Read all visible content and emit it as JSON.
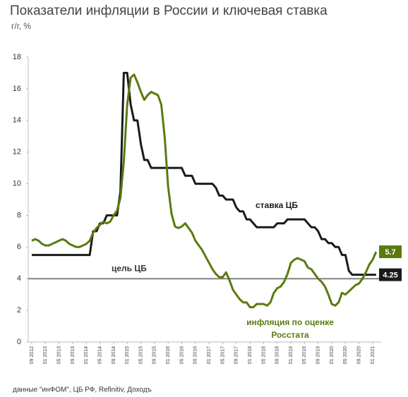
{
  "chart_data": {
    "type": "line",
    "title": "Показатели инфляции в России и ключевая ставка",
    "subtitle": "г/г, %",
    "source": "данные \"инФОМ\", ЦБ РФ, Refinitiv, Доходъ",
    "categories": [
      "09 2012",
      null,
      null,
      null,
      "01 2013",
      null,
      null,
      null,
      "05 2013",
      null,
      null,
      null,
      "09 2013",
      null,
      null,
      null,
      "01 2014",
      null,
      null,
      null,
      "05 2014",
      null,
      null,
      null,
      "09 2014",
      null,
      null,
      null,
      "01 2015",
      null,
      null,
      null,
      "05 2015",
      null,
      null,
      null,
      "09 2015",
      null,
      null,
      null,
      "01 2016",
      null,
      null,
      null,
      "05 2016",
      null,
      null,
      null,
      "09 2016",
      null,
      null,
      null,
      "01 2017",
      null,
      null,
      null,
      "05 2017",
      null,
      null,
      null,
      "09 2017",
      null,
      null,
      null,
      "01 2018",
      null,
      null,
      null,
      "05 2018",
      null,
      null,
      null,
      "09 2018",
      null,
      null,
      null,
      "01 2019",
      null,
      null,
      null,
      "05 2019",
      null,
      null,
      null,
      "09 2019",
      null,
      null,
      null,
      "01 2020",
      null,
      null,
      null,
      "05 2020",
      null,
      null,
      null,
      "09 2020",
      null,
      null,
      null,
      "01 2021",
      null
    ],
    "series": [
      {
        "label_lines": [
          "ставка ЦБ"
        ],
        "color": "#1a1a1a",
        "values": [
          5.5,
          5.5,
          5.5,
          5.5,
          5.5,
          5.5,
          5.5,
          5.5,
          5.5,
          5.5,
          5.5,
          5.5,
          5.5,
          5.5,
          5.5,
          5.5,
          5.5,
          5.5,
          7.0,
          7.0,
          7.5,
          7.5,
          8.0,
          8.0,
          8.0,
          8.0,
          9.5,
          17.0,
          17,
          15,
          14,
          14,
          12.5,
          11.5,
          11.5,
          11,
          11,
          11,
          11,
          11,
          11,
          11,
          11,
          11,
          11,
          10.5,
          10.5,
          10.5,
          10,
          10,
          10,
          10,
          10,
          10,
          9.75,
          9.25,
          9.25,
          9,
          9,
          9,
          8.5,
          8.25,
          8.25,
          7.75,
          7.75,
          7.5,
          7.25,
          7.25,
          7.25,
          7.25,
          7.25,
          7.25,
          7.5,
          7.5,
          7.5,
          7.75,
          7.75,
          7.75,
          7.75,
          7.75,
          7.75,
          7.5,
          7.25,
          7.25,
          7.0,
          6.5,
          6.5,
          6.25,
          6.25,
          6.0,
          6.0,
          5.5,
          5.5,
          4.5,
          4.25,
          4.25,
          4.25,
          4.25,
          4.25,
          4.25,
          4.25,
          4.25
        ]
      },
      {
        "label_lines": [
          "инфляция по оценке",
          "Росстата"
        ],
        "color": "#5a7a10",
        "values": [
          6.4,
          6.5,
          6.4,
          6.2,
          6.1,
          6.1,
          6.2,
          6.3,
          6.4,
          6.5,
          6.4,
          6.2,
          6.1,
          6.0,
          6.0,
          6.1,
          6.2,
          6.4,
          6.9,
          7.2,
          7.4,
          7.6,
          7.5,
          7.6,
          8.0,
          8.3,
          9.1,
          11.4,
          15.0,
          16.7,
          16.9,
          16.4,
          15.8,
          15.3,
          15.6,
          15.8,
          15.7,
          15.6,
          15.0,
          12.9,
          9.8,
          8.1,
          7.3,
          7.2,
          7.3,
          7.5,
          7.2,
          6.9,
          6.4,
          6.1,
          5.8,
          5.4,
          5.0,
          4.6,
          4.3,
          4.1,
          4.1,
          4.4,
          3.9,
          3.3,
          3.0,
          2.7,
          2.5,
          2.5,
          2.2,
          2.2,
          2.4,
          2.4,
          2.4,
          2.3,
          2.5,
          3.1,
          3.4,
          3.5,
          3.8,
          4.3,
          5.0,
          5.2,
          5.3,
          5.2,
          5.1,
          4.7,
          4.6,
          4.3,
          4.0,
          3.8,
          3.5,
          3.0,
          2.4,
          2.3,
          2.5,
          3.1,
          3.0,
          3.2,
          3.4,
          3.6,
          3.7,
          4.0,
          4.4,
          4.9,
          5.2,
          5.7
        ]
      }
    ],
    "target": {
      "label": "цель ЦБ",
      "value": 4,
      "color": "#808080"
    },
    "ylim": [
      0,
      18
    ],
    "yticks": [
      0,
      2,
      4,
      6,
      8,
      10,
      12,
      14,
      16,
      18
    ],
    "grid": false
  }
}
